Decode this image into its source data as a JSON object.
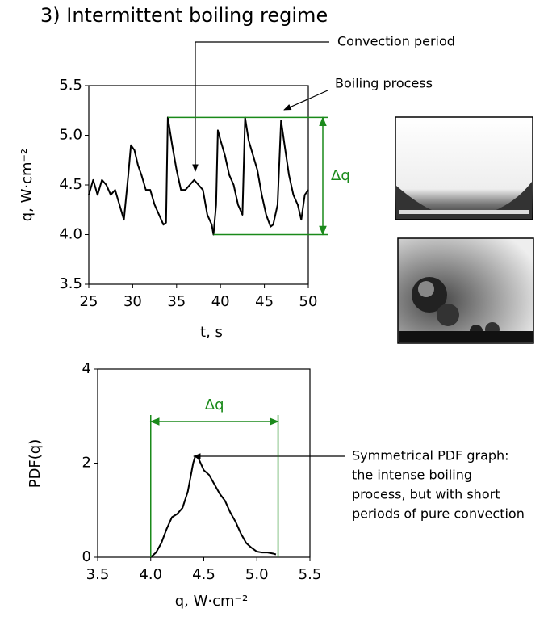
{
  "chart_data": [
    {
      "type": "line",
      "title": "3) Intermittent boiling regime",
      "xlabel": "t, s",
      "ylabel": "q, W·cm⁻²",
      "x": [
        25,
        25.5,
        26,
        26.5,
        27,
        27.5,
        28,
        28.5,
        29,
        29.5,
        29.8,
        30.2,
        30.6,
        31,
        31.5,
        32,
        32.5,
        33,
        33.5,
        33.8,
        34,
        34.5,
        35,
        35.5,
        36,
        36.5,
        37,
        37.5,
        38,
        38.5,
        39,
        39.2,
        39.5,
        39.7,
        40,
        40.5,
        41,
        41.5,
        42,
        42.5,
        42.8,
        43.2,
        43.7,
        44.2,
        44.7,
        45.2,
        45.7,
        46,
        46.5,
        46.9,
        47.3,
        47.8,
        48.3,
        48.8,
        49.2,
        49.6,
        50
      ],
      "series": [
        {
          "name": "q",
          "color": "#000000",
          "values": [
            4.4,
            4.55,
            4.4,
            4.55,
            4.5,
            4.4,
            4.45,
            4.3,
            4.15,
            4.6,
            4.9,
            4.85,
            4.7,
            4.6,
            4.45,
            4.45,
            4.3,
            4.2,
            4.1,
            4.12,
            5.18,
            4.9,
            4.65,
            4.45,
            4.45,
            4.5,
            4.55,
            4.5,
            4.45,
            4.2,
            4.1,
            4.0,
            4.3,
            5.05,
            4.95,
            4.8,
            4.6,
            4.5,
            4.3,
            4.2,
            5.18,
            4.95,
            4.8,
            4.65,
            4.4,
            4.2,
            4.08,
            4.1,
            4.3,
            5.15,
            4.9,
            4.6,
            4.4,
            4.3,
            4.15,
            4.4,
            4.45
          ]
        }
      ],
      "xlim": [
        25,
        50
      ],
      "xticks": [
        25,
        30,
        35,
        40,
        45,
        50
      ],
      "ylim": [
        3.5,
        5.5
      ],
      "yticks": [
        3.5,
        {
          "value": 4,
          "label": "4.0"
        },
        4.5,
        {
          "value": 5,
          "label": "5.0"
        },
        5.5
      ],
      "range": {
        "label": "Δq",
        "values": [
          5.18,
          4.0
        ],
        "color": "#1a8a1a"
      },
      "annotations": [
        "Convection period",
        "Boiling process"
      ]
    },
    {
      "type": "line",
      "xlabel": "q, W·cm⁻²",
      "ylabel": "PDF(q)",
      "x": [
        4.0,
        4.05,
        4.1,
        4.15,
        4.2,
        4.25,
        4.3,
        4.35,
        4.4,
        4.42,
        4.45,
        4.5,
        4.55,
        4.6,
        4.65,
        4.7,
        4.75,
        4.8,
        4.85,
        4.9,
        4.95,
        5.0,
        5.05,
        5.1,
        5.15,
        5.18
      ],
      "series": [
        {
          "name": "PDF",
          "color": "#000000",
          "values": [
            0,
            0.1,
            0.3,
            0.6,
            0.85,
            0.92,
            1.05,
            1.4,
            2.0,
            2.15,
            2.1,
            1.85,
            1.75,
            1.55,
            1.35,
            1.2,
            0.95,
            0.75,
            0.5,
            0.3,
            0.2,
            0.12,
            0.1,
            0.1,
            0.08,
            0.06
          ]
        }
      ],
      "xlim": [
        3.5,
        5.5
      ],
      "xticks": [
        3.5,
        {
          "value": 4,
          "label": "4.0"
        },
        4.5,
        {
          "value": 5,
          "label": "5.0"
        },
        5.5
      ],
      "ylim": [
        0,
        4
      ],
      "yticks": [
        0,
        2,
        4
      ],
      "range": {
        "label": "Δq",
        "values": [
          4.0,
          5.2
        ],
        "color": "#1a8a1a"
      },
      "annotations": [
        "Symmetrical PDF graph:",
        "the intense boiling",
        "process, but with short",
        "periods of pure convection"
      ]
    }
  ]
}
